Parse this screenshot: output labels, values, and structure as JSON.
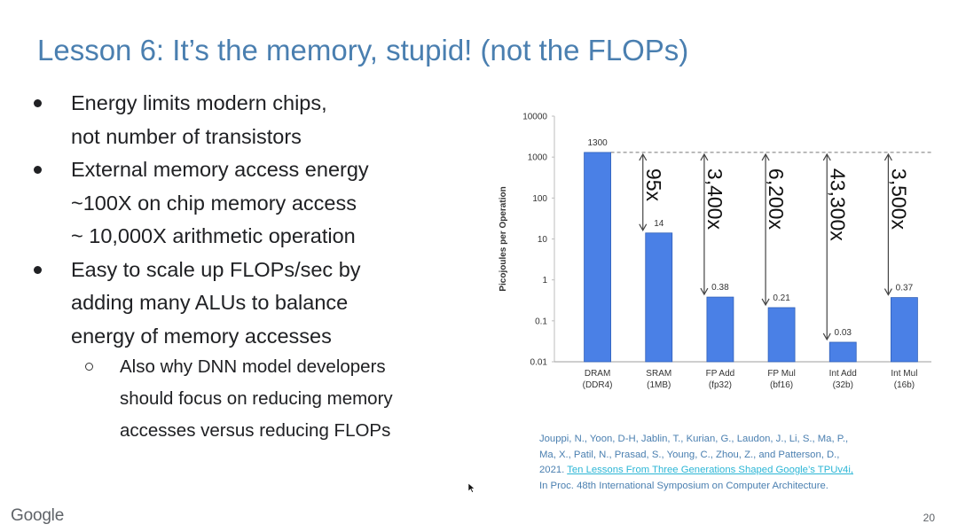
{
  "slide": {
    "title": "Lesson 6: It’s the memory, stupid! (not the FLOPs)",
    "bullets": [
      {
        "lines": [
          "Energy limits modern chips,",
          "not number of transistors"
        ]
      },
      {
        "lines": [
          "External memory access energy",
          "~100X on chip memory access",
          "~ 10,000X arithmetic operation"
        ]
      },
      {
        "lines": [
          "Easy to scale up FLOPs/sec by",
          "adding many ALUs to balance",
          "energy of memory accesses"
        ],
        "sub": {
          "lines": [
            "Also why DNN model developers",
            "should focus on reducing memory",
            "accesses versus reducing FLOPs"
          ]
        }
      }
    ],
    "citation": {
      "lines": [
        "Jouppi, N., Yoon, D-H, Jablin, T., Kurian, G., Laudon, J., Li, S., Ma, P.,",
        "Ma, X., Patil, N., Prasad, S., Young, C., Zhou, Z., and Patterson, D.,"
      ],
      "year": "2021.",
      "link_text": "Ten Lessons From Three Generations Shaped Google’s TPUv4i,",
      "venue": "In Proc. 48th International Symposium on Computer Architecture."
    },
    "footer_logo": "Google",
    "page_number": "20"
  },
  "chart_data": {
    "type": "bar",
    "ylabel": "Picojoules per Operation",
    "yscale": "log",
    "ylim": [
      0.01,
      10000
    ],
    "yticks": [
      "0.01",
      "0.1",
      "1",
      "10",
      "100",
      "1000",
      "10000"
    ],
    "categories": [
      {
        "line1": "DRAM",
        "line2": "(DDR4)"
      },
      {
        "line1": "SRAM",
        "line2": "(1MB)"
      },
      {
        "line1": "FP Add",
        "line2": "(fp32)"
      },
      {
        "line1": "FP Mul",
        "line2": "(bf16)"
      },
      {
        "line1": "Int Add",
        "line2": "(32b)"
      },
      {
        "line1": "Int Mul",
        "line2": "(16b)"
      }
    ],
    "values": [
      1300,
      14,
      0.38,
      0.21,
      0.03,
      0.37
    ],
    "value_labels": [
      "1300",
      "14",
      "0.38",
      "0.21",
      "0.03",
      "0.37"
    ],
    "ratio_labels": [
      "",
      "95x",
      "3,400x",
      "6,200x",
      "43,300x",
      "3,500x"
    ],
    "bar_color": "#4a80e6",
    "reference_line_value": 1300
  }
}
